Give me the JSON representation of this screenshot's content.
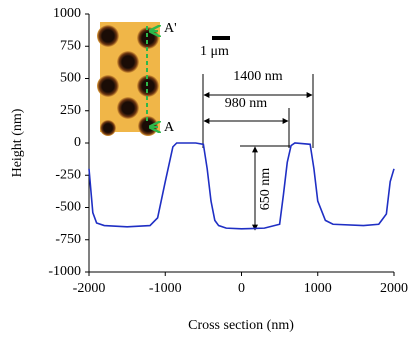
{
  "chart_data": {
    "type": "line",
    "xlabel": "Cross section (nm)",
    "ylabel": "Height (nm)",
    "x": [
      -2000,
      -1950,
      -1900,
      -1800,
      -1500,
      -1200,
      -1100,
      -1000,
      -900,
      -850,
      -600,
      -500,
      -450,
      -400,
      -350,
      -300,
      -200,
      0,
      300,
      500,
      550,
      600,
      650,
      700,
      900,
      950,
      1000,
      1100,
      1200,
      1600,
      1800,
      1900,
      1950,
      2000
    ],
    "series": [
      {
        "color": "#1f2fc4",
        "values": [
          -200,
          -540,
          -620,
          -640,
          -650,
          -640,
          -580,
          -300,
          -30,
          0,
          0,
          -10,
          -200,
          -450,
          -600,
          -640,
          -660,
          -665,
          -660,
          -630,
          -400,
          -150,
          -20,
          0,
          -10,
          -200,
          -450,
          -600,
          -630,
          -640,
          -630,
          -550,
          -300,
          -200
        ]
      }
    ],
    "xlim": [
      -2000,
      2000
    ],
    "xticks": [
      -2000,
      -1000,
      0,
      1000,
      2000
    ],
    "ylim": [
      -1000,
      1000
    ],
    "yticks": [
      -1000,
      -750,
      -500,
      -250,
      0,
      250,
      500,
      750,
      1000
    ],
    "grid": false,
    "annotations": [
      {
        "text": "1400 nm",
        "color": "#c00000"
      },
      {
        "text": "980 nm",
        "color": "#1f2fc4"
      },
      {
        "text": "650 nm",
        "color": "#c00000"
      }
    ],
    "inset_labels": [
      "A'",
      "A",
      "1 μm"
    ]
  }
}
